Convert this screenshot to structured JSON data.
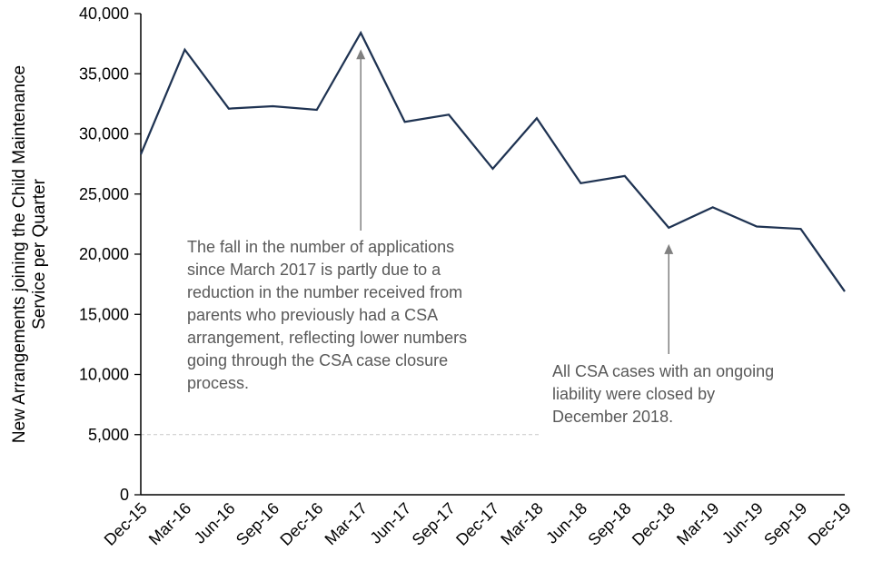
{
  "chart_data": {
    "type": "line",
    "title": "",
    "xlabel": "",
    "ylabel": "New Arrangements joining the Child Maintenance Service per Quarter",
    "ylabel_lines": [
      "New Arrangements joining the Child Maintenance",
      "Service per Quarter"
    ],
    "ylim": [
      0,
      40000
    ],
    "ytick_step": 5000,
    "ytick_labels": [
      "0",
      "5,000",
      "10,000",
      "15,000",
      "20,000",
      "25,000",
      "30,000",
      "35,000",
      "40,000"
    ],
    "categories": [
      "Dec-15",
      "Mar-16",
      "Jun-16",
      "Sep-16",
      "Dec-16",
      "Mar-17",
      "Jun-17",
      "Sep-17",
      "Dec-17",
      "Mar-18",
      "Jun-18",
      "Sep-18",
      "Dec-18",
      "Mar-19",
      "Jun-19",
      "Sep-19",
      "Dec-19"
    ],
    "values": [
      28300,
      37000,
      32100,
      32300,
      32000,
      38400,
      31000,
      31600,
      27100,
      31300,
      25900,
      26500,
      22200,
      23900,
      22300,
      22100,
      16900
    ],
    "line_color": "#1F3352",
    "axis_color": "#000000",
    "tick_label_color": "#000000",
    "annotation_color": "#595959",
    "arrow_color": "#808080",
    "grid": false,
    "legend": false,
    "annotations": [
      {
        "text": "The fall in the number of applications\nsince March 2017 is partly due to a\nreduction in the number received from\nparents who previously had a CSA\narrangement, reflecting lower numbers\ngoing through the CSA case closure\nprocess.",
        "arrow_target": "Mar-17"
      },
      {
        "text": "All CSA cases with an ongoing\nliability were closed by\nDecember 2018.",
        "arrow_target": "Dec-18"
      }
    ]
  }
}
